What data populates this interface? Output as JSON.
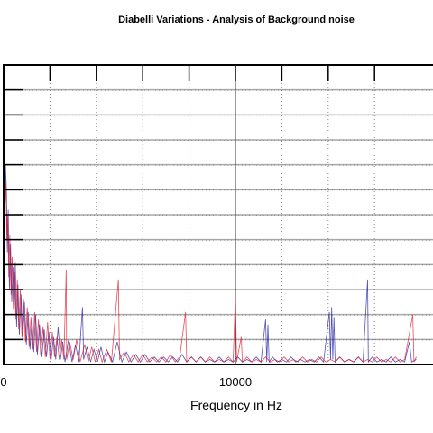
{
  "chart_data": {
    "type": "line",
    "title": "Diabelli Variations - Analysis of Background noise",
    "xlabel": "Frequency in Hz",
    "ylabel": "",
    "xlim": [
      0,
      17800
    ],
    "ylim": [
      0,
      12
    ],
    "x_ticks": [
      0,
      10000
    ],
    "x_tick_labels": [
      "0",
      "10000"
    ],
    "x_minor_ticks": [
      2000,
      4000,
      6000,
      8000,
      12000,
      14000,
      16000
    ],
    "y_gridlines": [
      1,
      2,
      3,
      4,
      5,
      6,
      7,
      8,
      9,
      10,
      11
    ],
    "grid": true,
    "legend": "none",
    "series": [
      {
        "color": "#1a1aa0",
        "points": [
          [
            0,
            0.4
          ],
          [
            20,
            8.8
          ],
          [
            50,
            5.5
          ],
          [
            80,
            8.0
          ],
          [
            120,
            7.0
          ],
          [
            160,
            4.5
          ],
          [
            200,
            6.2
          ],
          [
            250,
            3.0
          ],
          [
            300,
            4.8
          ],
          [
            350,
            2.5
          ],
          [
            400,
            3.9
          ],
          [
            450,
            2.0
          ],
          [
            500,
            4.1
          ],
          [
            560,
            1.5
          ],
          [
            620,
            3.2
          ],
          [
            680,
            1.2
          ],
          [
            750,
            2.8
          ],
          [
            820,
            1.0
          ],
          [
            900,
            2.5
          ],
          [
            980,
            0.8
          ],
          [
            1060,
            2.1
          ],
          [
            1140,
            0.6
          ],
          [
            1220,
            1.8
          ],
          [
            1300,
            0.5
          ],
          [
            1380,
            2.0
          ],
          [
            1460,
            0.4
          ],
          [
            1550,
            1.6
          ],
          [
            1650,
            0.3
          ],
          [
            1750,
            1.4
          ],
          [
            1850,
            0.3
          ],
          [
            1950,
            1.3
          ],
          [
            2050,
            0.2
          ],
          [
            2150,
            1.1
          ],
          [
            2250,
            0.2
          ],
          [
            2350,
            1.5
          ],
          [
            2450,
            0.2
          ],
          [
            2550,
            0.9
          ],
          [
            2650,
            0.1
          ],
          [
            2800,
            1.0
          ],
          [
            2950,
            0.1
          ],
          [
            3100,
            0.8
          ],
          [
            3250,
            0.1
          ],
          [
            3400,
            2.3
          ],
          [
            3450,
            0.2
          ],
          [
            3600,
            0.7
          ],
          [
            3750,
            0.1
          ],
          [
            3900,
            0.6
          ],
          [
            4050,
            0.1
          ],
          [
            4200,
            0.7
          ],
          [
            4350,
            0.1
          ],
          [
            4500,
            0.5
          ],
          [
            4700,
            0.1
          ],
          [
            4900,
            0.9
          ],
          [
            5100,
            0.1
          ],
          [
            5300,
            0.5
          ],
          [
            5500,
            0.1
          ],
          [
            5700,
            0.4
          ],
          [
            5900,
            0.1
          ],
          [
            6100,
            0.4
          ],
          [
            6300,
            0.1
          ],
          [
            6500,
            0.3
          ],
          [
            6700,
            0.1
          ],
          [
            6900,
            0.3
          ],
          [
            7100,
            0.1
          ],
          [
            7300,
            0.3
          ],
          [
            7500,
            0.1
          ],
          [
            7700,
            0.4
          ],
          [
            7900,
            0.1
          ],
          [
            8100,
            0.3
          ],
          [
            8300,
            0.1
          ],
          [
            8500,
            0.3
          ],
          [
            8700,
            0.1
          ],
          [
            8900,
            0.2
          ],
          [
            9100,
            0.1
          ],
          [
            9300,
            0.3
          ],
          [
            9500,
            0.1
          ],
          [
            9700,
            0.2
          ],
          [
            9900,
            0.1
          ],
          [
            10100,
            0.3
          ],
          [
            10300,
            0.1
          ],
          [
            10500,
            0.2
          ],
          [
            10700,
            0.1
          ],
          [
            10900,
            0.3
          ],
          [
            11100,
            0.1
          ],
          [
            11300,
            1.8
          ],
          [
            11350,
            0.1
          ],
          [
            11400,
            1.6
          ],
          [
            11450,
            0.1
          ],
          [
            11600,
            0.3
          ],
          [
            11800,
            0.1
          ],
          [
            12000,
            0.2
          ],
          [
            12200,
            0.1
          ],
          [
            12400,
            0.3
          ],
          [
            12600,
            0.1
          ],
          [
            12800,
            0.2
          ],
          [
            13000,
            0.1
          ],
          [
            13200,
            0.2
          ],
          [
            13400,
            0.1
          ],
          [
            13600,
            0.3
          ],
          [
            13800,
            0.1
          ],
          [
            14050,
            2.1
          ],
          [
            14100,
            0.2
          ],
          [
            14150,
            2.3
          ],
          [
            14200,
            0.2
          ],
          [
            14250,
            1.9
          ],
          [
            14300,
            0.1
          ],
          [
            14500,
            0.3
          ],
          [
            14700,
            0.1
          ],
          [
            14900,
            0.2
          ],
          [
            15100,
            0.1
          ],
          [
            15300,
            0.3
          ],
          [
            15500,
            0.1
          ],
          [
            15700,
            3.4
          ],
          [
            15730,
            0.1
          ],
          [
            15900,
            0.3
          ],
          [
            16100,
            0.1
          ],
          [
            16300,
            0.2
          ],
          [
            16500,
            0.1
          ],
          [
            16700,
            0.3
          ],
          [
            16900,
            0.1
          ],
          [
            17100,
            0.2
          ],
          [
            17300,
            0.1
          ],
          [
            17500,
            0.9
          ],
          [
            17600,
            0.1
          ],
          [
            17800,
            0.2
          ]
        ]
      },
      {
        "color": "#e01020",
        "points": [
          [
            0,
            0.5
          ],
          [
            15,
            7.6
          ],
          [
            40,
            8.1
          ],
          [
            70,
            6.5
          ],
          [
            100,
            7.3
          ],
          [
            140,
            5.0
          ],
          [
            180,
            6.0
          ],
          [
            220,
            3.5
          ],
          [
            270,
            5.2
          ],
          [
            320,
            2.8
          ],
          [
            370,
            4.3
          ],
          [
            420,
            2.2
          ],
          [
            470,
            3.7
          ],
          [
            530,
            1.8
          ],
          [
            590,
            3.4
          ],
          [
            650,
            1.4
          ],
          [
            720,
            3.0
          ],
          [
            790,
            1.1
          ],
          [
            860,
            2.6
          ],
          [
            940,
            0.9
          ],
          [
            1020,
            2.3
          ],
          [
            1100,
            0.7
          ],
          [
            1180,
            1.9
          ],
          [
            1260,
            0.6
          ],
          [
            1340,
            2.1
          ],
          [
            1420,
            0.5
          ],
          [
            1500,
            1.8
          ],
          [
            1600,
            0.4
          ],
          [
            1700,
            1.5
          ],
          [
            1800,
            0.3
          ],
          [
            1900,
            1.7
          ],
          [
            2000,
            0.2
          ],
          [
            2100,
            1.3
          ],
          [
            2200,
            0.3
          ],
          [
            2300,
            1.1
          ],
          [
            2400,
            0.2
          ],
          [
            2500,
            1.0
          ],
          [
            2600,
            0.2
          ],
          [
            2700,
            3.8
          ],
          [
            2720,
            0.2
          ],
          [
            2850,
            0.9
          ],
          [
            3000,
            0.2
          ],
          [
            3150,
            1.0
          ],
          [
            3300,
            0.1
          ],
          [
            3500,
            0.8
          ],
          [
            3650,
            0.1
          ],
          [
            3800,
            0.7
          ],
          [
            3950,
            0.1
          ],
          [
            4100,
            0.6
          ],
          [
            4250,
            0.1
          ],
          [
            4450,
            0.6
          ],
          [
            4650,
            0.1
          ],
          [
            4950,
            3.4
          ],
          [
            5000,
            0.2
          ],
          [
            5200,
            0.5
          ],
          [
            5400,
            0.1
          ],
          [
            5600,
            0.4
          ],
          [
            5800,
            0.1
          ],
          [
            6000,
            0.4
          ],
          [
            6200,
            0.1
          ],
          [
            6400,
            0.3
          ],
          [
            6600,
            0.1
          ],
          [
            6800,
            0.3
          ],
          [
            7000,
            0.1
          ],
          [
            7200,
            0.4
          ],
          [
            7400,
            0.1
          ],
          [
            7600,
            0.3
          ],
          [
            7850,
            2.1
          ],
          [
            7900,
            0.1
          ],
          [
            8100,
            0.3
          ],
          [
            8300,
            0.1
          ],
          [
            8500,
            0.3
          ],
          [
            8700,
            0.1
          ],
          [
            8900,
            0.3
          ],
          [
            9100,
            0.1
          ],
          [
            9300,
            0.2
          ],
          [
            9500,
            0.1
          ],
          [
            9700,
            0.3
          ],
          [
            9900,
            0.1
          ],
          [
            10000,
            2.8
          ],
          [
            10050,
            0.1
          ],
          [
            10250,
            1.1
          ],
          [
            10300,
            0.1
          ],
          [
            10500,
            0.3
          ],
          [
            10700,
            0.1
          ],
          [
            10900,
            0.2
          ],
          [
            11100,
            0.1
          ],
          [
            11300,
            0.3
          ],
          [
            11500,
            0.1
          ],
          [
            11700,
            0.2
          ],
          [
            11900,
            0.1
          ],
          [
            12100,
            0.3
          ],
          [
            12300,
            0.1
          ],
          [
            12500,
            0.2
          ],
          [
            12700,
            0.1
          ],
          [
            12900,
            0.3
          ],
          [
            13100,
            0.1
          ],
          [
            13300,
            0.2
          ],
          [
            13500,
            0.1
          ],
          [
            13700,
            0.3
          ],
          [
            13900,
            0.1
          ],
          [
            14100,
            0.2
          ],
          [
            14300,
            0.1
          ],
          [
            14500,
            0.3
          ],
          [
            14700,
            0.1
          ],
          [
            14900,
            0.2
          ],
          [
            15100,
            0.1
          ],
          [
            15300,
            0.3
          ],
          [
            15500,
            0.1
          ],
          [
            15700,
            0.2
          ],
          [
            15900,
            0.1
          ],
          [
            16100,
            0.3
          ],
          [
            16300,
            0.1
          ],
          [
            16500,
            0.2
          ],
          [
            16700,
            0.1
          ],
          [
            16900,
            0.3
          ],
          [
            17100,
            0.1
          ],
          [
            17300,
            0.2
          ],
          [
            17650,
            2.0
          ],
          [
            17700,
            0.1
          ],
          [
            17800,
            0.3
          ]
        ]
      }
    ]
  }
}
